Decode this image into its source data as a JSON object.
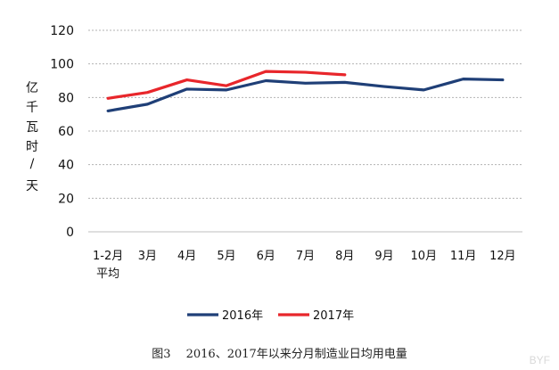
{
  "chart_data": {
    "type": "line",
    "categories": [
      "1-2月\n平均",
      "3月",
      "4月",
      "5月",
      "6月",
      "7月",
      "8月",
      "9月",
      "10月",
      "11月",
      "12月"
    ],
    "series": [
      {
        "name": "2016年",
        "color": "#1f3f77",
        "values": [
          72,
          76,
          85,
          84.5,
          90,
          88.5,
          89,
          86.5,
          84.5,
          91,
          90.5
        ]
      },
      {
        "name": "2017年",
        "color": "#e8262b",
        "values": [
          79.5,
          83,
          90.5,
          87,
          95.5,
          95,
          93.5,
          null,
          null,
          null,
          null
        ]
      }
    ],
    "ylabel": "亿千瓦时/天",
    "ylim": [
      0,
      120
    ],
    "yticks": [
      0,
      20,
      40,
      60,
      80,
      100,
      120
    ],
    "grid": true,
    "legend_position": "bottom"
  },
  "caption": "图3　 2016、2017年以来分月制造业日均用电量",
  "watermark": "BYF 百方网 · 电气供应商"
}
